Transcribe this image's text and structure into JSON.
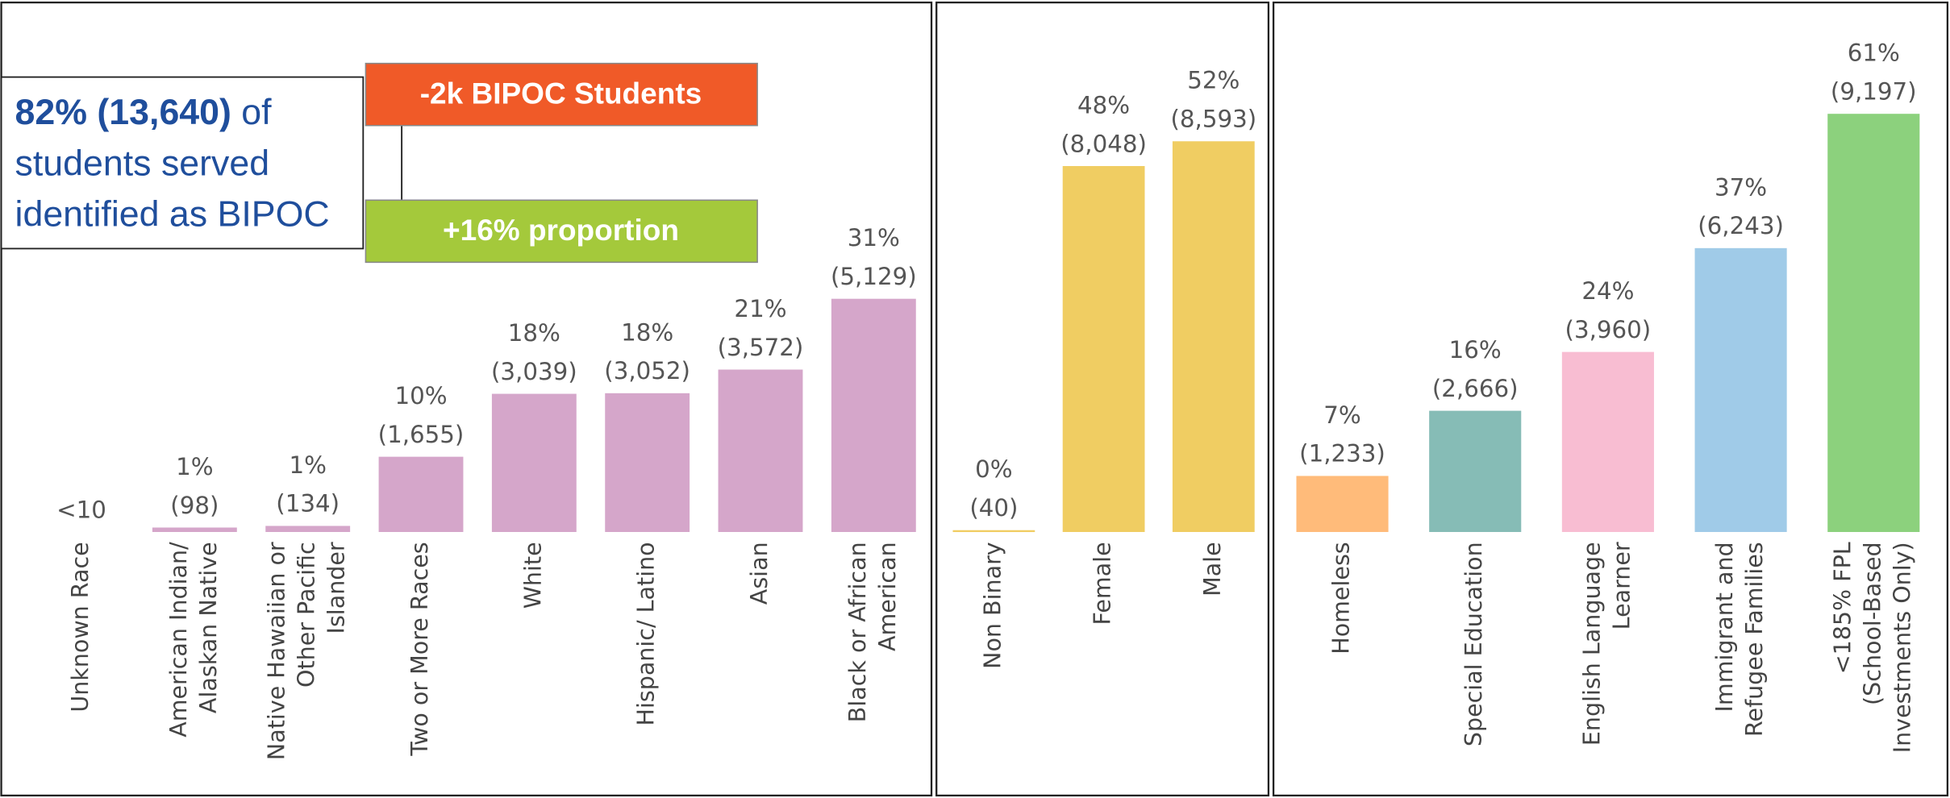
{
  "chart_data": [
    {
      "type": "bar",
      "ylim": [
        0,
        11700
      ],
      "categories": [
        [
          "Unknown Race"
        ],
        [
          "American Indian/",
          "Alaskan Native"
        ],
        [
          "Native Hawaiian or",
          "Other Pacific",
          "Islander"
        ],
        [
          "Two or More Races"
        ],
        [
          "White"
        ],
        [
          "Hispanic/ Latino"
        ],
        [
          "Asian"
        ],
        [
          "Black or African",
          "American"
        ]
      ],
      "values": [
        null,
        98,
        134,
        1655,
        3039,
        3052,
        3572,
        5129
      ],
      "value_labels": [
        "<10",
        "(98)",
        "(134)",
        "(1,655)",
        "(3,039)",
        "(3,052)",
        "(3,572)",
        "(5,129)"
      ],
      "percent_values": [
        null,
        1,
        1,
        10,
        18,
        18,
        21,
        31
      ],
      "percent_labels": [
        null,
        "1%",
        "1%",
        "10%",
        "18%",
        "18%",
        "21%",
        "31%"
      ],
      "color": "#d5a6ca"
    },
    {
      "type": "bar",
      "ylim": [
        0,
        11700
      ],
      "categories": [
        [
          "Non Binary"
        ],
        [
          "Female"
        ],
        [
          "Male"
        ]
      ],
      "values": [
        40,
        8048,
        8593
      ],
      "value_labels": [
        "(40)",
        "(8,048)",
        "(8,593)"
      ],
      "percent_values": [
        0,
        48,
        52
      ],
      "percent_labels": [
        "0%",
        "48%",
        "52%"
      ],
      "color": "#f0cd62"
    },
    {
      "type": "bar",
      "ylim": [
        0,
        11700
      ],
      "categories": [
        [
          "Homeless"
        ],
        [
          "Special Education"
        ],
        [
          "English Language",
          "Learner"
        ],
        [
          "Immigrant and",
          "Refugee Families"
        ],
        [
          "<185% FPL",
          "(School-Based",
          "Investments Only)"
        ]
      ],
      "values": [
        1233,
        2666,
        3960,
        6243,
        9197
      ],
      "value_labels": [
        "(1,233)",
        "(2,666)",
        "(3,960)",
        "(6,243)",
        "(9,197)"
      ],
      "percent_values": [
        7,
        16,
        24,
        37,
        61
      ],
      "percent_labels": [
        "7%",
        "16%",
        "24%",
        "37%",
        "61%"
      ],
      "colors": [
        "#ffbb7a",
        "#86bcb6",
        "#f8bdd2",
        "#a0cbe8",
        "#8cd17d"
      ]
    }
  ],
  "annotation": {
    "highlight": "82% (13,640)",
    "lines": [
      "of",
      "students served",
      "identified as BIPOC"
    ]
  },
  "callouts": [
    {
      "text": "-2k BIPOC Students",
      "color": "#f05a28"
    },
    {
      "text": "+16% proportion",
      "color": "#a4c93b"
    }
  ]
}
